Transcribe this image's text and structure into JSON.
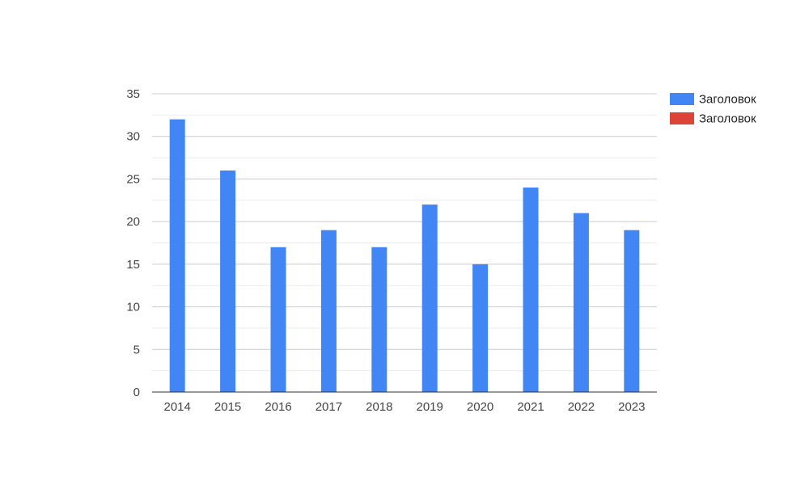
{
  "chart_data": {
    "type": "bar",
    "categories": [
      "2014",
      "2015",
      "2016",
      "2017",
      "2018",
      "2019",
      "2020",
      "2021",
      "2022",
      "2023"
    ],
    "series": [
      {
        "name": "Заголовок",
        "values": [
          32,
          26,
          17,
          19,
          17,
          22,
          15,
          24,
          21,
          19
        ],
        "color": "#4285f4"
      },
      {
        "name": "Заголовок",
        "values": [
          0,
          0,
          0,
          0,
          0,
          0,
          0,
          0,
          0,
          0
        ],
        "color": "#db4437"
      }
    ],
    "yticks": [
      0,
      5,
      10,
      15,
      20,
      25,
      30,
      35
    ],
    "ylim": [
      0,
      35
    ],
    "grid": true,
    "minor_grid": true,
    "legend": "right",
    "title": "",
    "xlabel": "",
    "ylabel": ""
  }
}
